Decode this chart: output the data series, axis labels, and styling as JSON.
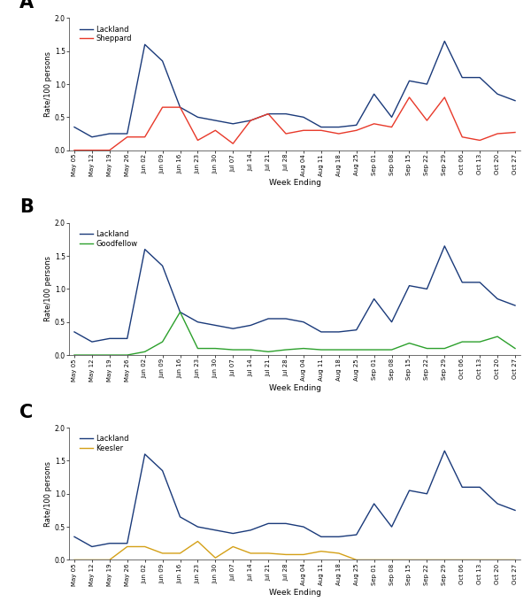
{
  "x_labels": [
    "May 05",
    "May 12",
    "May 19",
    "May 26",
    "Jun 02",
    "Jun 09",
    "Jun 16",
    "Jun 23",
    "Jun 30",
    "Jul 07",
    "Jul 14",
    "Jul 21",
    "Jul 28",
    "Aug 04",
    "Aug 11",
    "Aug 18",
    "Aug 25",
    "Sep 01",
    "Sep 08",
    "Sep 15",
    "Sep 22",
    "Sep 29",
    "Oct 06",
    "Oct 13",
    "Oct 20",
    "Oct 27"
  ],
  "lackland": [
    0.35,
    0.2,
    0.25,
    0.25,
    1.6,
    1.35,
    0.65,
    0.5,
    0.45,
    0.4,
    0.45,
    0.55,
    0.55,
    0.5,
    0.35,
    0.35,
    0.38,
    0.85,
    0.5,
    1.05,
    1.0,
    1.65,
    1.1,
    1.1,
    0.85,
    0.75
  ],
  "sheppard": [
    0.0,
    0.0,
    0.0,
    0.2,
    0.2,
    0.65,
    0.65,
    0.15,
    0.3,
    0.1,
    0.45,
    0.55,
    0.25,
    0.3,
    0.3,
    0.25,
    0.3,
    0.4,
    0.35,
    0.8,
    0.45,
    0.8,
    0.2,
    0.15,
    0.25,
    0.27
  ],
  "goodfellow": [
    0.0,
    0.0,
    0.0,
    0.0,
    0.05,
    0.2,
    0.65,
    0.1,
    0.1,
    0.08,
    0.08,
    0.05,
    0.08,
    0.1,
    0.08,
    0.08,
    0.08,
    0.08,
    0.08,
    0.18,
    0.1,
    0.1,
    0.2,
    0.2,
    0.28,
    0.1
  ],
  "keesler": [
    0.0,
    0.0,
    0.0,
    0.2,
    0.2,
    0.1,
    0.1,
    0.28,
    0.03,
    0.2,
    0.1,
    0.1,
    0.08,
    0.08,
    0.13,
    0.1,
    0.0,
    0.0,
    0.0,
    0.0,
    0.0,
    0.0,
    0.0,
    0.0,
    0.0,
    0.0
  ],
  "lackland_color": "#1a3a7a",
  "sheppard_color": "#e8392a",
  "goodfellow_color": "#2ca02c",
  "keesler_color": "#d4a017",
  "ylabel": "Rate/100 persons",
  "xlabel": "Week Ending",
  "panel_labels": [
    "A",
    "B",
    "C"
  ],
  "legend_labels_A": [
    "Lackland",
    "Sheppard"
  ],
  "legend_labels_B": [
    "Lackland",
    "Goodfellow"
  ],
  "legend_labels_C": [
    "Lackland",
    "Keesler"
  ],
  "ylim": [
    0.0,
    2.0
  ],
  "yticks": [
    0.0,
    0.5,
    1.0,
    1.5,
    2.0
  ]
}
